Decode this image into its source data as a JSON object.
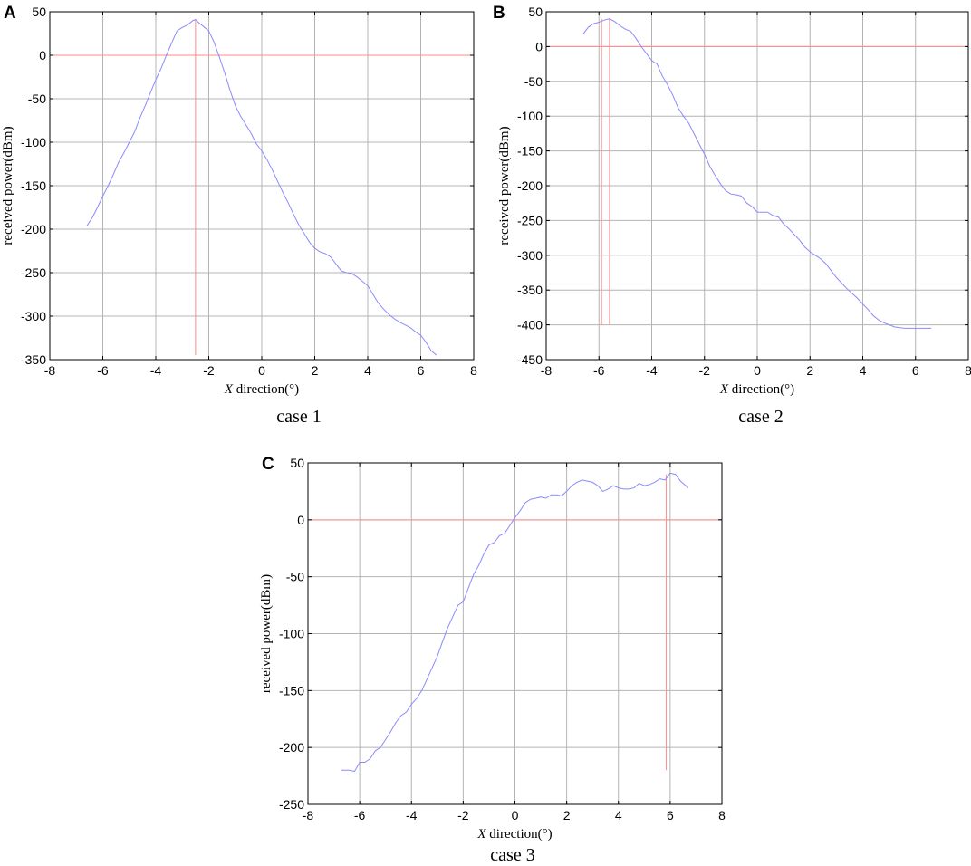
{
  "chart_data": [
    {
      "type": "line",
      "panel": "A",
      "caption": "case 1",
      "xlabel_italic": "X",
      "xlabel_rest": " direction(°)",
      "ylabel": "received power(dBm)",
      "xlim": [
        -8,
        8
      ],
      "ylim": [
        -350,
        50
      ],
      "xticks": [
        -8,
        -6,
        -4,
        -2,
        0,
        2,
        4,
        6,
        8
      ],
      "yticks": [
        50,
        0,
        -50,
        -100,
        -150,
        -200,
        -250,
        -300,
        -350
      ],
      "grid": true,
      "series": [
        {
          "color": "#8a8aff",
          "x": [
            -6.6,
            -6.4,
            -6.2,
            -6.0,
            -5.8,
            -5.6,
            -5.4,
            -5.2,
            -5.0,
            -4.8,
            -4.6,
            -4.4,
            -4.2,
            -4.0,
            -3.8,
            -3.6,
            -3.4,
            -3.2,
            -3.0,
            -2.8,
            -2.6,
            -2.5,
            -2.4,
            -2.2,
            -2.0,
            -1.8,
            -1.6,
            -1.4,
            -1.2,
            -1.0,
            -0.8,
            -0.6,
            -0.4,
            -0.2,
            0.0,
            0.2,
            0.4,
            0.6,
            0.8,
            1.0,
            1.2,
            1.4,
            1.6,
            1.8,
            2.0,
            2.2,
            2.4,
            2.6,
            2.8,
            3.0,
            3.2,
            3.4,
            3.6,
            3.8,
            4.0,
            4.2,
            4.4,
            4.6,
            4.8,
            5.0,
            5.2,
            5.4,
            5.6,
            5.8,
            6.0,
            6.2,
            6.4,
            6.6
          ],
          "y": [
            -196,
            -187,
            -175,
            -162,
            -150,
            -137,
            -123,
            -112,
            -100,
            -88,
            -72,
            -58,
            -43,
            -28,
            -15,
            0,
            14,
            28,
            32,
            35,
            40,
            41,
            38,
            33,
            28,
            15,
            -2,
            -20,
            -40,
            -58,
            -70,
            -80,
            -90,
            -102,
            -110,
            -120,
            -132,
            -145,
            -158,
            -170,
            -183,
            -195,
            -205,
            -215,
            -222,
            -226,
            -228,
            -232,
            -240,
            -248,
            -250,
            -251,
            -255,
            -260,
            -265,
            -275,
            -285,
            -292,
            -298,
            -303,
            -307,
            -310,
            -313,
            -318,
            -322,
            -330,
            -340,
            -345
          ]
        }
      ],
      "ref_lines": [
        {
          "color": "#ff8a8a",
          "orientation": "h",
          "value": 0
        },
        {
          "color": "#ff8a8a",
          "orientation": "v",
          "value": -2.5,
          "from": -345,
          "to": 41
        }
      ]
    },
    {
      "type": "line",
      "panel": "B",
      "caption": "case 2",
      "xlabel_italic": "X",
      "xlabel_rest": " direction(°)",
      "ylabel": "received power(dBm)",
      "xlim": [
        -8,
        8
      ],
      "ylim": [
        -450,
        50
      ],
      "xticks": [
        -8,
        -6,
        -4,
        -2,
        0,
        2,
        4,
        6,
        8
      ],
      "yticks": [
        50,
        0,
        -50,
        -100,
        -150,
        -200,
        -250,
        -300,
        -350,
        -400,
        -450
      ],
      "grid": true,
      "series": [
        {
          "color": "#8a8aff",
          "x": [
            -6.6,
            -6.4,
            -6.2,
            -6.0,
            -5.8,
            -5.6,
            -5.4,
            -5.2,
            -5.0,
            -4.8,
            -4.6,
            -4.4,
            -4.2,
            -4.0,
            -3.8,
            -3.6,
            -3.4,
            -3.2,
            -3.0,
            -2.8,
            -2.6,
            -2.4,
            -2.2,
            -2.0,
            -1.8,
            -1.6,
            -1.4,
            -1.2,
            -1.0,
            -0.8,
            -0.6,
            -0.4,
            -0.2,
            0.0,
            0.2,
            0.4,
            0.6,
            0.8,
            1.0,
            1.2,
            1.4,
            1.6,
            1.8,
            2.0,
            2.2,
            2.4,
            2.6,
            2.8,
            3.0,
            3.2,
            3.4,
            3.6,
            3.8,
            4.0,
            4.2,
            4.4,
            4.6,
            4.8,
            5.0,
            5.2,
            5.4,
            5.6,
            5.8,
            6.0,
            6.2,
            6.4,
            6.6
          ],
          "y": [
            18,
            28,
            33,
            35,
            38,
            40,
            36,
            30,
            25,
            22,
            12,
            0,
            -10,
            -20,
            -25,
            -42,
            -55,
            -70,
            -88,
            -100,
            -110,
            -125,
            -140,
            -155,
            -172,
            -185,
            -197,
            -207,
            -212,
            -213,
            -215,
            -225,
            -230,
            -238,
            -238,
            -238,
            -243,
            -245,
            -255,
            -262,
            -270,
            -278,
            -288,
            -295,
            -300,
            -305,
            -312,
            -322,
            -332,
            -340,
            -348,
            -355,
            -362,
            -370,
            -378,
            -387,
            -393,
            -397,
            -400,
            -403,
            -404,
            -405,
            -405,
            -405,
            -405,
            -405,
            -405
          ]
        }
      ],
      "ref_lines": [
        {
          "color": "#ff8a8a",
          "orientation": "h",
          "value": 0
        },
        {
          "color": "#ff8a8a",
          "orientation": "v",
          "value": -5.9,
          "from": -400,
          "to": 40
        },
        {
          "color": "#ff8a8a",
          "orientation": "v",
          "value": -5.6,
          "from": -400,
          "to": 40
        }
      ]
    },
    {
      "type": "line",
      "panel": "C",
      "caption": "case 3",
      "xlabel_italic": "X",
      "xlabel_rest": " direction(°)",
      "ylabel": "received power(dBm)",
      "xlim": [
        -8,
        8
      ],
      "ylim": [
        -250,
        50
      ],
      "xticks": [
        -8,
        -6,
        -4,
        -2,
        0,
        2,
        4,
        6,
        8
      ],
      "yticks": [
        50,
        0,
        -50,
        -100,
        -150,
        -200,
        -250
      ],
      "grid": true,
      "series": [
        {
          "color": "#8a8aff",
          "x": [
            -6.7,
            -6.4,
            -6.2,
            -6.0,
            -5.8,
            -5.6,
            -5.4,
            -5.2,
            -5.0,
            -4.8,
            -4.6,
            -4.4,
            -4.2,
            -4.0,
            -3.8,
            -3.6,
            -3.4,
            -3.2,
            -3.0,
            -2.8,
            -2.6,
            -2.4,
            -2.2,
            -2.0,
            -1.8,
            -1.6,
            -1.4,
            -1.2,
            -1.0,
            -0.8,
            -0.6,
            -0.4,
            -0.2,
            0.0,
            0.2,
            0.4,
            0.6,
            0.8,
            1.0,
            1.2,
            1.4,
            1.6,
            1.8,
            2.0,
            2.2,
            2.4,
            2.6,
            2.8,
            3.0,
            3.2,
            3.4,
            3.6,
            3.8,
            4.0,
            4.2,
            4.4,
            4.6,
            4.8,
            5.0,
            5.2,
            5.4,
            5.6,
            5.8,
            6.0,
            6.2,
            6.4,
            6.7
          ],
          "y": [
            -220,
            -220,
            -221,
            -213,
            -213,
            -210,
            -203,
            -200,
            -193,
            -186,
            -178,
            -172,
            -169,
            -162,
            -157,
            -150,
            -140,
            -130,
            -120,
            -107,
            -95,
            -85,
            -75,
            -72,
            -60,
            -48,
            -40,
            -30,
            -22,
            -20,
            -14,
            -12,
            -5,
            2,
            8,
            15,
            18,
            19,
            20,
            19,
            22,
            22,
            21,
            25,
            30,
            33,
            35,
            34,
            33,
            30,
            25,
            27,
            30,
            28,
            27,
            27,
            28,
            32,
            30,
            31,
            33,
            36,
            35,
            41,
            40,
            34,
            28
          ]
        }
      ],
      "ref_lines": [
        {
          "color": "#ff8a8a",
          "orientation": "h",
          "value": 0
        },
        {
          "color": "#ff8a8a",
          "orientation": "v",
          "value": 5.85,
          "from": -220,
          "to": 40
        }
      ]
    }
  ],
  "colors": {
    "line": "#8a8aff",
    "marker": "#ff8a8a",
    "grid": "#b4b4b4",
    "axes": "#000000"
  }
}
